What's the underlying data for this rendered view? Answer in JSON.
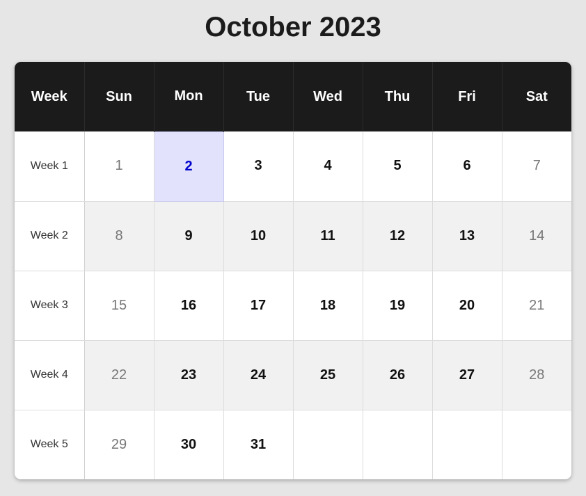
{
  "title": "October 2023",
  "headers": [
    "Week",
    "Sun",
    "Mon",
    "Tue",
    "Wed",
    "Thu",
    "Fri",
    "Sat"
  ],
  "weeks": [
    {
      "label": "Week 1",
      "days": [
        "1",
        "2",
        "3",
        "4",
        "5",
        "6",
        "7"
      ]
    },
    {
      "label": "Week 2",
      "days": [
        "8",
        "9",
        "10",
        "11",
        "12",
        "13",
        "14"
      ]
    },
    {
      "label": "Week 3",
      "days": [
        "15",
        "16",
        "17",
        "18",
        "19",
        "20",
        "21"
      ]
    },
    {
      "label": "Week 4",
      "days": [
        "22",
        "23",
        "24",
        "25",
        "26",
        "27",
        "28"
      ]
    },
    {
      "label": "Week 5",
      "days": [
        "29",
        "30",
        "31",
        "",
        "",
        "",
        ""
      ]
    }
  ],
  "highlighted_date": "2",
  "colors": {
    "header_background": "#1b1b1b",
    "highlight_background": "#e2e2fd",
    "highlight_text": "#0000cc",
    "weekend_text": "#777777"
  }
}
